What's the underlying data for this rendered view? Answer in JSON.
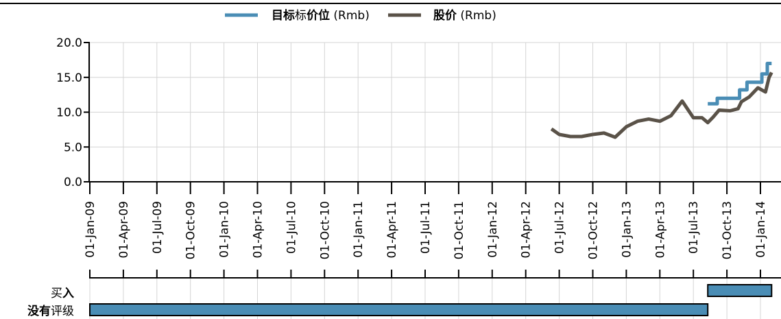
{
  "legend": {
    "target_label_bold": "目标",
    "target_label_rest_a": "标",
    "target_label_bold2": "价位",
    "target_unit": " (Rmb)",
    "price_label_bold": "股价",
    "price_unit": " (Rmb)"
  },
  "ratings": {
    "buy_label_plain": "买",
    "buy_label_bold": "入",
    "none_label_bold": "没有",
    "none_label_plain": "评级"
  },
  "chart_data": {
    "type": "line",
    "title": "",
    "xlabel": "",
    "ylabel": "",
    "ylim": [
      0,
      20
    ],
    "y_ticks": [
      "0.0",
      "5.0",
      "10.0",
      "15.0",
      "20.0"
    ],
    "x_tick_labels": [
      "01-Jan-09",
      "01-Apr-09",
      "01-Jul-09",
      "01-Oct-09",
      "01-Jan-10",
      "01-Apr-10",
      "01-Jul-10",
      "01-Oct-10",
      "01-Jan-11",
      "01-Apr-11",
      "01-Jul-11",
      "01-Oct-11",
      "01-Jan-12",
      "01-Apr-12",
      "01-Jul-12",
      "01-Oct-12",
      "01-Jan-13",
      "01-Apr-13",
      "01-Jul-13",
      "01-Oct-13",
      "01-Jan-14"
    ],
    "colors": {
      "target": "#4a8db5",
      "price": "#5a5248",
      "rating_bar": "#4a8db5"
    },
    "series": [
      {
        "name": "目标价位 (Rmb)",
        "step": true,
        "points": [
          [
            "2013-08-10",
            11.2
          ],
          [
            "2013-09-05",
            12.0
          ],
          [
            "2013-11-05",
            13.2
          ],
          [
            "2013-11-25",
            14.3
          ],
          [
            "2014-01-05",
            15.5
          ],
          [
            "2014-01-20",
            17.0
          ],
          [
            "2014-02-01",
            17.0
          ]
        ]
      },
      {
        "name": "股价 (Rmb)",
        "step": false,
        "points": [
          [
            "2012-06-10",
            7.6
          ],
          [
            "2012-07-01",
            6.8
          ],
          [
            "2012-08-01",
            6.5
          ],
          [
            "2012-09-01",
            6.5
          ],
          [
            "2012-10-01",
            6.8
          ],
          [
            "2012-11-01",
            7.0
          ],
          [
            "2012-12-01",
            6.4
          ],
          [
            "2013-01-01",
            7.9
          ],
          [
            "2013-02-01",
            8.7
          ],
          [
            "2013-03-01",
            9.0
          ],
          [
            "2013-04-01",
            8.7
          ],
          [
            "2013-05-01",
            9.5
          ],
          [
            "2013-06-01",
            11.6
          ],
          [
            "2013-07-01",
            9.2
          ],
          [
            "2013-07-25",
            9.2
          ],
          [
            "2013-08-10",
            8.5
          ],
          [
            "2013-08-25",
            9.3
          ],
          [
            "2013-09-10",
            10.3
          ],
          [
            "2013-10-10",
            10.2
          ],
          [
            "2013-11-01",
            10.5
          ],
          [
            "2013-11-10",
            11.5
          ],
          [
            "2013-12-01",
            12.2
          ],
          [
            "2013-12-25",
            13.5
          ],
          [
            "2014-01-15",
            12.9
          ],
          [
            "2014-01-25",
            15.0
          ],
          [
            "2014-02-01",
            15.7
          ]
        ]
      }
    ],
    "ratings": [
      {
        "name": "买入",
        "start": "2013-08-10",
        "end": "2014-02-01"
      },
      {
        "name": "没有评级",
        "start": "2009-01-01",
        "end": "2013-08-10"
      }
    ]
  }
}
